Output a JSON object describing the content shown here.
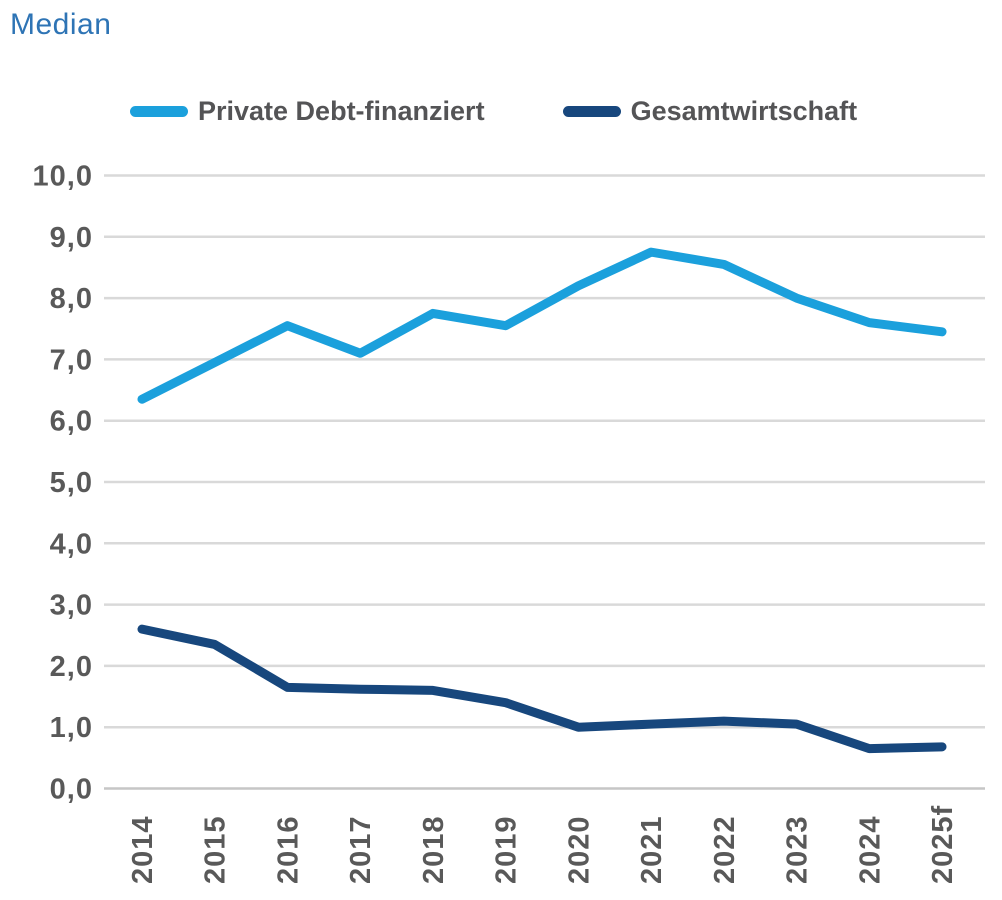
{
  "title": "Median",
  "title_color": "#2E74B5",
  "legend": {
    "items": [
      {
        "label": "Private Debt-finanziert",
        "color": "#1BA0DC"
      },
      {
        "label": "Gesamtwirtschaft",
        "color": "#17477D"
      }
    ]
  },
  "chart_data": {
    "type": "line",
    "categories": [
      "2014",
      "2015",
      "2016",
      "2017",
      "2018",
      "2019",
      "2020",
      "2021",
      "2022",
      "2023",
      "2024",
      "2025f"
    ],
    "series": [
      {
        "name": "Private Debt-finanziert",
        "color": "#1BA0DC",
        "values": [
          6.35,
          6.95,
          7.55,
          7.1,
          7.75,
          7.55,
          8.2,
          8.75,
          8.55,
          8.0,
          7.6,
          7.45
        ]
      },
      {
        "name": "Gesamtwirtschaft",
        "color": "#17477D",
        "values": [
          2.6,
          2.35,
          1.65,
          1.62,
          1.6,
          1.4,
          1.0,
          1.05,
          1.1,
          1.05,
          0.65,
          0.68
        ]
      }
    ],
    "title": "Median",
    "xlabel": "",
    "ylabel": "",
    "ylim": [
      0,
      10
    ],
    "y_tick_step": 1,
    "y_tick_labels_top_to_bottom": [
      "10,0",
      "9,0",
      "8,0",
      "7,0",
      "6,0",
      "5,0",
      "4,0",
      "3,0",
      "2,0",
      "1,0",
      "0,0"
    ],
    "grid": true,
    "gridline_color": "#D9D9D9",
    "baseline_color": "#C6C6C6",
    "tick_label_color": "#595959",
    "legend_position": "top"
  }
}
